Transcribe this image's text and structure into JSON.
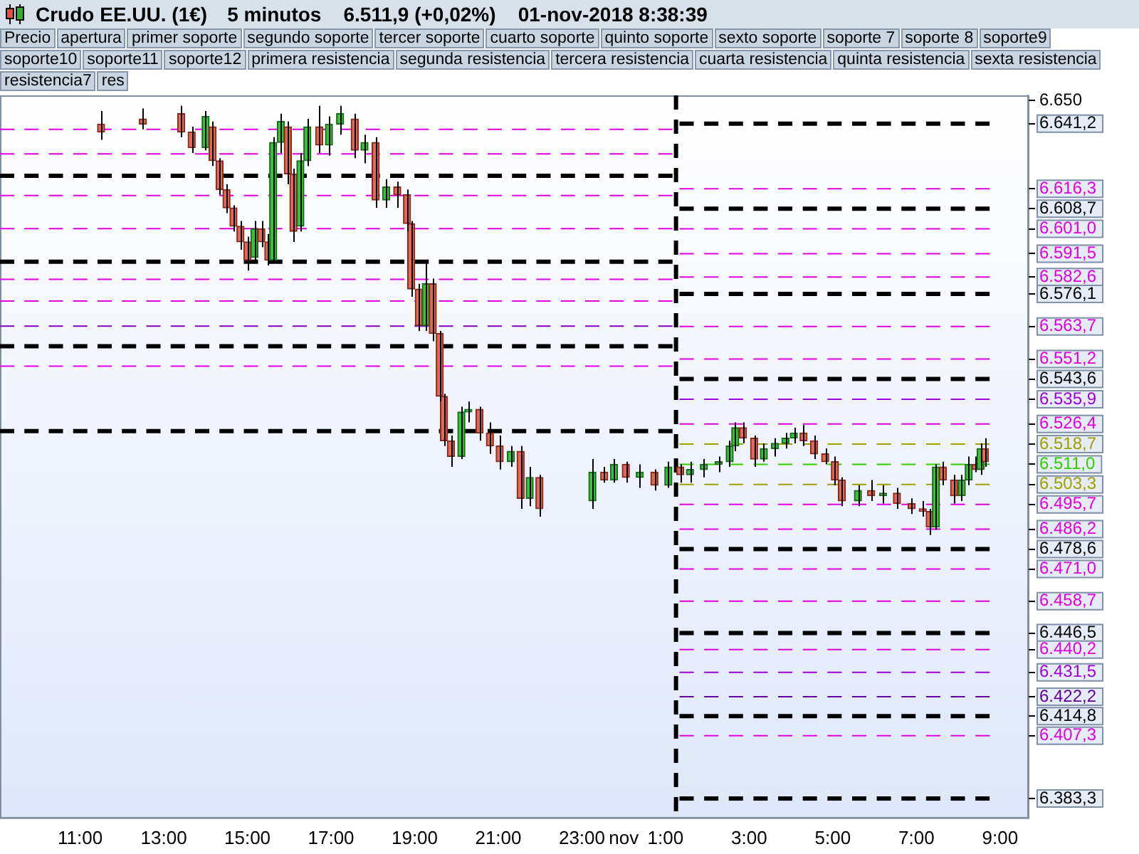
{
  "chart_data": {
    "type": "candlestick",
    "title": "Crudo EE.UU. (1€)",
    "subtitle": "5 minutos    6.511,9 (+0,02%)    01-nov-2018 8:38:39",
    "annotations": [
      "Precio",
      "apertura",
      "primer soporte",
      "segundo soporte",
      "tercer soporte",
      "cuarto soporte",
      "quinto soporte",
      "sexto soporte",
      "soporte 7",
      "soporte 8",
      "soporte9",
      "soporte10",
      "soporte11",
      "soporte12",
      "primera resistencia",
      "segunda resistencia",
      "tercera resistencia",
      "cuarta resistencia",
      "quinta resistencia",
      "sexta resistencia",
      "resistencia7",
      "res"
    ],
    "x": [
      "2018-10-31T11:30",
      "2018-10-31T12:30",
      "2018-10-31T13:25",
      "2018-10-31T13:40",
      "2018-10-31T14:00",
      "2018-10-31T14:10",
      "2018-10-31T14:20",
      "2018-10-31T14:30",
      "2018-10-31T14:40",
      "2018-10-31T14:50",
      "2018-10-31T15:00",
      "2018-10-31T15:10",
      "2018-10-31T15:20",
      "2018-10-31T15:30",
      "2018-10-31T15:37",
      "2018-10-31T15:48",
      "2018-10-31T15:58",
      "2018-10-31T16:06",
      "2018-10-31T16:16",
      "2018-10-31T16:26",
      "2018-10-31T16:43",
      "2018-10-31T16:57",
      "2018-10-31T17:13",
      "2018-10-31T17:34",
      "2018-10-31T17:48",
      "2018-10-31T18:04",
      "2018-10-31T18:19",
      "2018-10-31T18:35",
      "2018-10-31T18:49",
      "2018-10-31T18:55",
      "2018-10-31T19:06",
      "2018-10-31T19:16",
      "2018-10-31T19:26",
      "2018-10-31T19:36",
      "2018-10-31T19:42",
      "2018-10-31T19:52",
      "2018-10-31T20:07",
      "2018-10-31T20:17",
      "2018-10-31T20:33",
      "2018-10-31T20:48",
      "2018-10-31T21:02",
      "2018-10-31T21:18",
      "2018-10-31T21:32",
      "2018-10-31T21:45",
      "2018-10-31T21:59",
      "2018-10-31T23:15",
      "2018-10-31T23:32",
      "2018-10-31T23:46",
      "2018-11-01T00:03",
      "2018-11-01T00:23",
      "2018-11-01T00:44",
      "2018-11-01T01:04",
      "2018-11-01T01:21",
      "2018-11-01T01:35",
      "2018-11-01T01:55",
      "2018-11-01T02:16",
      "2018-11-01T02:32",
      "2018-11-01T02:40",
      "2018-11-01T02:51",
      "2018-11-01T03:07",
      "2018-11-01T03:21",
      "2018-11-01T03:37",
      "2018-11-01T03:52",
      "2018-11-01T04:04",
      "2018-11-01T04:18",
      "2018-11-01T04:33",
      "2018-11-01T04:49",
      "2018-11-01T05:03",
      "2018-11-01T05:13",
      "2018-11-01T05:36",
      "2018-11-01T05:55",
      "2018-11-01T06:12",
      "2018-11-01T06:32",
      "2018-11-01T06:53",
      "2018-11-01T07:09",
      "2018-11-01T07:19",
      "2018-11-01T07:28",
      "2018-11-01T07:38",
      "2018-11-01T07:54",
      "2018-11-01T08:05",
      "2018-11-01T08:15",
      "2018-11-01T08:25",
      "2018-11-01T08:32",
      "2018-11-01T08:38"
    ],
    "ohlc": [
      [
        6641,
        6646,
        6635,
        6638
      ],
      [
        6643,
        6647,
        6639,
        6641
      ],
      [
        6645,
        6648,
        6636,
        6638
      ],
      [
        6638,
        6640,
        6630,
        6632
      ],
      [
        6632,
        6646,
        6631,
        6644
      ],
      [
        6640,
        6642,
        6625,
        6627
      ],
      [
        6627,
        6628,
        6614,
        6616
      ],
      [
        6616,
        6618,
        6607,
        6609
      ],
      [
        6609,
        6610,
        6600,
        6602
      ],
      [
        6602,
        6604,
        6593,
        6596
      ],
      [
        6596,
        6598,
        6585,
        6589
      ],
      [
        6590,
        6604,
        6588,
        6601
      ],
      [
        6601,
        6604,
        6594,
        6596
      ],
      [
        6596,
        6599,
        6587,
        6589
      ],
      [
        6589,
        6636,
        6588,
        6634
      ],
      [
        6634,
        6645,
        6630,
        6642
      ],
      [
        6640,
        6642,
        6618,
        6622
      ],
      [
        6622,
        6624,
        6596,
        6600
      ],
      [
        6602,
        6630,
        6600,
        6627
      ],
      [
        6627,
        6643,
        6625,
        6640
      ],
      [
        6640,
        6648,
        6630,
        6633
      ],
      [
        6633,
        6644,
        6629,
        6641
      ],
      [
        6641,
        6648,
        6637,
        6645
      ],
      [
        6643,
        6645,
        6628,
        6631
      ],
      [
        6631,
        6637,
        6626,
        6634
      ],
      [
        6634,
        6636,
        6609,
        6612
      ],
      [
        6612,
        6620,
        6609,
        6617
      ],
      [
        6617,
        6619,
        6609,
        6614
      ],
      [
        6614,
        6616,
        6600,
        6603
      ],
      [
        6603,
        6604,
        6575,
        6578
      ],
      [
        6578,
        6580,
        6562,
        6564
      ],
      [
        6564,
        6589,
        6562,
        6580
      ],
      [
        6580,
        6582,
        6558,
        6561
      ],
      [
        6561,
        6562,
        6535,
        6537
      ],
      [
        6537,
        6538,
        6518,
        6520
      ],
      [
        6520,
        6522,
        6510,
        6514
      ],
      [
        6514,
        6533,
        6513,
        6531
      ],
      [
        6531,
        6535,
        6527,
        6532
      ],
      [
        6532,
        6533,
        6520,
        6523
      ],
      [
        6523,
        6527,
        6515,
        6518
      ],
      [
        6518,
        6522,
        6509,
        6512
      ],
      [
        6512,
        6518,
        6510,
        6516
      ],
      [
        6516,
        6518,
        6494,
        6498
      ],
      [
        6498,
        6510,
        6495,
        6506
      ],
      [
        6506,
        6507,
        6491,
        6494
      ],
      [
        6497,
        6513,
        6494,
        6508
      ],
      [
        6508,
        6510,
        6504,
        6505
      ],
      [
        6505,
        6513,
        6504,
        6511
      ],
      [
        6511,
        6512,
        6504,
        6506
      ],
      [
        6506,
        6511,
        6502,
        6508
      ],
      [
        6508,
        6509,
        6501,
        6503
      ],
      [
        6503,
        6512,
        6502,
        6510
      ],
      [
        6510,
        6511,
        6504,
        6507
      ],
      [
        6507,
        6512,
        6504,
        6509
      ],
      [
        6509,
        6513,
        6506,
        6511
      ],
      [
        6511,
        6514,
        6508,
        6512
      ],
      [
        6512,
        6520,
        6510,
        6518
      ],
      [
        6518,
        6527,
        6516,
        6525
      ],
      [
        6525,
        6527,
        6519,
        6521
      ],
      [
        6521,
        6522,
        6510,
        6513
      ],
      [
        6513,
        6519,
        6512,
        6517
      ],
      [
        6517,
        6521,
        6514,
        6519
      ],
      [
        6519,
        6523,
        6517,
        6521
      ],
      [
        6521,
        6525,
        6519,
        6523
      ],
      [
        6523,
        6526,
        6518,
        6520
      ],
      [
        6520,
        6522,
        6513,
        6515
      ],
      [
        6515,
        6517,
        6511,
        6512
      ],
      [
        6512,
        6514,
        6503,
        6505
      ],
      [
        6505,
        6506,
        6495,
        6497
      ],
      [
        6497,
        6503,
        6495,
        6501
      ],
      [
        6501,
        6505,
        6497,
        6499
      ],
      [
        6499,
        6503,
        6496,
        6500
      ],
      [
        6500,
        6502,
        6494,
        6496
      ],
      [
        6496,
        6498,
        6492,
        6494
      ],
      [
        6494,
        6497,
        6491,
        6493
      ],
      [
        6493,
        6494,
        6484,
        6487
      ],
      [
        6487,
        6511,
        6486,
        6510
      ],
      [
        6510,
        6512,
        6503,
        6505
      ],
      [
        6505,
        6507,
        6496,
        6499
      ],
      [
        6499,
        6507,
        6497,
        6505
      ],
      [
        6505,
        6514,
        6503,
        6511
      ],
      [
        6511,
        6514,
        6508,
        6509
      ],
      [
        6509,
        6519,
        6507,
        6517
      ],
      [
        6517,
        6521,
        6510,
        6512
      ]
    ],
    "series": [
      {
        "type": "line",
        "x": [
          "2018-10-31T09:05",
          "2018-11-01T01:10"
        ],
        "values": [
          6639.0,
          6639.0
        ],
        "color": "#e000e0",
        "line_style": "dashed"
      },
      {
        "type": "line",
        "x": [
          "2018-10-31T09:05",
          "2018-11-01T01:10"
        ],
        "values": [
          6629.6,
          6629.6
        ],
        "color": "#e000e0",
        "line_style": "dashed"
      },
      {
        "type": "line",
        "x": [
          "2018-10-31T09:05",
          "2018-11-01T01:10"
        ],
        "values": [
          6621.3,
          6621.3
        ],
        "color": "#000000",
        "line_style": "dashed"
      },
      {
        "type": "line",
        "x": [
          "2018-10-31T09:05",
          "2018-11-01T01:10"
        ],
        "values": [
          6613.7,
          6613.7
        ],
        "color": "#e000e0",
        "line_style": "dashed"
      },
      {
        "type": "line",
        "x": [
          "2018-10-31T09:05",
          "2018-11-01T01:10"
        ],
        "values": [
          6601.1,
          6601.1
        ],
        "color": "#e000e0",
        "line_style": "dashed"
      },
      {
        "type": "line",
        "x": [
          "2018-10-31T09:05",
          "2018-11-01T01:10"
        ],
        "values": [
          6588.4,
          6588.4
        ],
        "color": "#000000",
        "line_style": "dashed"
      },
      {
        "type": "line",
        "x": [
          "2018-10-31T09:05",
          "2018-11-01T01:10"
        ],
        "values": [
          6581.7,
          6581.7
        ],
        "color": "#e000e0",
        "line_style": "dashed"
      },
      {
        "type": "line",
        "x": [
          "2018-10-31T09:05",
          "2018-11-01T01:10"
        ],
        "values": [
          6573.4,
          6573.4
        ],
        "color": "#e000e0",
        "line_style": "dashed"
      },
      {
        "type": "line",
        "x": [
          "2018-10-31T09:05",
          "2018-11-01T01:10"
        ],
        "values": [
          6563.8,
          6563.8
        ],
        "color": "#8000c0",
        "line_style": "dashed"
      },
      {
        "type": "line",
        "x": [
          "2018-10-31T09:05",
          "2018-11-01T01:10"
        ],
        "values": [
          6556.1,
          6556.1
        ],
        "color": "#000000",
        "line_style": "dashed"
      },
      {
        "type": "line",
        "x": [
          "2018-10-31T09:05",
          "2018-11-01T01:10"
        ],
        "values": [
          6548.5,
          6548.5
        ],
        "color": "#e000e0",
        "line_style": "dashed"
      },
      {
        "type": "line",
        "x": [
          "2018-10-31T09:05",
          "2018-11-01T01:10"
        ],
        "values": [
          6523.7,
          6523.7
        ],
        "color": "#000000",
        "line_style": "dashed"
      },
      {
        "type": "line",
        "x": [
          "2018-11-01T01:20",
          "2018-11-01T08:45"
        ],
        "values": [
          6641.2,
          6641.2
        ],
        "color": "#000000",
        "line_style": "dashed"
      },
      {
        "type": "line",
        "x": [
          "2018-11-01T01:20",
          "2018-11-01T08:45"
        ],
        "values": [
          6616.3,
          6616.3
        ],
        "color": "#e000e0",
        "line_style": "dashed"
      },
      {
        "type": "line",
        "x": [
          "2018-11-01T01:20",
          "2018-11-01T08:45"
        ],
        "values": [
          6608.7,
          6608.7
        ],
        "color": "#000000",
        "line_style": "dashed"
      },
      {
        "type": "line",
        "x": [
          "2018-11-01T01:20",
          "2018-11-01T08:45"
        ],
        "values": [
          6601.0,
          6601.0
        ],
        "color": "#e000e0",
        "line_style": "dashed"
      },
      {
        "type": "line",
        "x": [
          "2018-11-01T01:20",
          "2018-11-01T08:45"
        ],
        "values": [
          6591.5,
          6591.5
        ],
        "color": "#e000e0",
        "line_style": "dashed"
      },
      {
        "type": "line",
        "x": [
          "2018-11-01T01:20",
          "2018-11-01T08:45"
        ],
        "values": [
          6582.6,
          6582.6
        ],
        "color": "#e000e0",
        "line_style": "dashed"
      },
      {
        "type": "line",
        "x": [
          "2018-11-01T01:20",
          "2018-11-01T08:45"
        ],
        "values": [
          6576.1,
          6576.1
        ],
        "color": "#000000",
        "line_style": "dashed"
      },
      {
        "type": "line",
        "x": [
          "2018-11-01T01:20",
          "2018-11-01T08:45"
        ],
        "values": [
          6563.7,
          6563.7
        ],
        "color": "#e000e0",
        "line_style": "dashed"
      },
      {
        "type": "line",
        "x": [
          "2018-11-01T01:20",
          "2018-11-01T08:45"
        ],
        "values": [
          6551.2,
          6551.2
        ],
        "color": "#e000e0",
        "line_style": "dashed"
      },
      {
        "type": "line",
        "x": [
          "2018-11-01T01:20",
          "2018-11-01T08:45"
        ],
        "values": [
          6543.6,
          6543.6
        ],
        "color": "#000000",
        "line_style": "dashed"
      },
      {
        "type": "line",
        "x": [
          "2018-11-01T01:20",
          "2018-11-01T08:45"
        ],
        "values": [
          6535.9,
          6535.9
        ],
        "color": "#a000e0",
        "line_style": "dashed"
      },
      {
        "type": "line",
        "x": [
          "2018-11-01T01:20",
          "2018-11-01T08:45"
        ],
        "values": [
          6526.4,
          6526.4
        ],
        "color": "#e000e0",
        "line_style": "dashed"
      },
      {
        "type": "line",
        "x": [
          "2018-11-01T01:20",
          "2018-11-01T08:45"
        ],
        "values": [
          6518.7,
          6518.7
        ],
        "color": "#a0a000",
        "line_style": "dashed"
      },
      {
        "type": "line",
        "x": [
          "2018-11-01T01:20",
          "2018-11-01T08:45"
        ],
        "values": [
          6511.0,
          6511.0
        ],
        "color": "#30d000",
        "line_style": "dashed"
      },
      {
        "type": "line",
        "x": [
          "2018-11-01T01:20",
          "2018-11-01T08:45"
        ],
        "values": [
          6503.3,
          6503.3
        ],
        "color": "#a0a000",
        "line_style": "dashed"
      },
      {
        "type": "line",
        "x": [
          "2018-11-01T01:20",
          "2018-11-01T08:45"
        ],
        "values": [
          6495.7,
          6495.7
        ],
        "color": "#e000e0",
        "line_style": "dashed"
      },
      {
        "type": "line",
        "x": [
          "2018-11-01T01:20",
          "2018-11-01T08:45"
        ],
        "values": [
          6486.2,
          6486.2
        ],
        "color": "#e000e0",
        "line_style": "dashed"
      },
      {
        "type": "line",
        "x": [
          "2018-11-01T01:20",
          "2018-11-01T08:45"
        ],
        "values": [
          6478.6,
          6478.6
        ],
        "color": "#000000",
        "line_style": "dashed"
      },
      {
        "type": "line",
        "x": [
          "2018-11-01T01:20",
          "2018-11-01T08:45"
        ],
        "values": [
          6471.0,
          6471.0
        ],
        "color": "#e000e0",
        "line_style": "dashed"
      },
      {
        "type": "line",
        "x": [
          "2018-11-01T01:20",
          "2018-11-01T08:45"
        ],
        "values": [
          6458.7,
          6458.7
        ],
        "color": "#e000e0",
        "line_style": "dashed"
      },
      {
        "type": "line",
        "x": [
          "2018-11-01T01:20",
          "2018-11-01T08:45"
        ],
        "values": [
          6446.5,
          6446.5
        ],
        "color": "#000000",
        "line_style": "dashed"
      },
      {
        "type": "line",
        "x": [
          "2018-11-01T01:20",
          "2018-11-01T08:45"
        ],
        "values": [
          6440.2,
          6440.2
        ],
        "color": "#e000e0",
        "line_style": "dashed"
      },
      {
        "type": "line",
        "x": [
          "2018-11-01T01:20",
          "2018-11-01T08:45"
        ],
        "values": [
          6431.5,
          6431.5
        ],
        "color": "#a000e0",
        "line_style": "dashed"
      },
      {
        "type": "line",
        "x": [
          "2018-11-01T01:20",
          "2018-11-01T08:45"
        ],
        "values": [
          6422.2,
          6422.2
        ],
        "color": "#6000a0",
        "line_style": "dashed"
      },
      {
        "type": "line",
        "x": [
          "2018-11-01T01:20",
          "2018-11-01T08:45"
        ],
        "values": [
          6414.8,
          6414.8
        ],
        "color": "#000000",
        "line_style": "dashed"
      },
      {
        "type": "line",
        "x": [
          "2018-11-01T01:20",
          "2018-11-01T08:45"
        ],
        "values": [
          6407.3,
          6407.3
        ],
        "color": "#e000e0",
        "line_style": "dashed"
      },
      {
        "type": "line",
        "x": [
          "2018-11-01T01:20",
          "2018-11-01T08:45"
        ],
        "values": [
          6383.3,
          6383.3
        ],
        "color": "#000000",
        "line_style": "dashed"
      }
    ],
    "ref_lines": [
      {
        "axis": "x",
        "value": "2018-11-01T01:15",
        "color": "#000000",
        "line_style": "dashed"
      }
    ],
    "xlim": [
      "2018-10-31T09:05",
      "2018-11-01T09:40"
    ],
    "xticks": [
      {
        "value": "2018-10-31T11:00",
        "label": "11:00"
      },
      {
        "value": "2018-10-31T13:00",
        "label": "13:00"
      },
      {
        "value": "2018-10-31T15:00",
        "label": "15:00"
      },
      {
        "value": "2018-10-31T17:00",
        "label": "17:00"
      },
      {
        "value": "2018-10-31T19:00",
        "label": "19:00"
      },
      {
        "value": "2018-10-31T21:00",
        "label": "21:00"
      },
      {
        "value": "2018-10-31T23:00",
        "label": "23:00"
      },
      {
        "value": "2018-11-01T00:00",
        "label": "nov"
      },
      {
        "value": "2018-11-01T01:00",
        "label": "1:00"
      },
      {
        "value": "2018-11-01T03:00",
        "label": "3:00"
      },
      {
        "value": "2018-11-01T05:00",
        "label": "5:00"
      },
      {
        "value": "2018-11-01T07:00",
        "label": "7:00"
      },
      {
        "value": "2018-11-01T09:00",
        "label": "9:00"
      }
    ],
    "ylim": [
      6376,
      6652
    ],
    "yticks": [
      {
        "value": 6650,
        "label": "6.650"
      },
      {
        "value": 6641.2,
        "label": "6.641,2"
      },
      {
        "value": 6616.3,
        "label": "6.616,3"
      },
      {
        "value": 6608.7,
        "label": "6.608,7"
      },
      {
        "value": 6601.0,
        "label": "6.601,0"
      },
      {
        "value": 6591.5,
        "label": "6.591,5"
      },
      {
        "value": 6582.6,
        "label": "6.582,6"
      },
      {
        "value": 6576.1,
        "label": "6.576,1"
      },
      {
        "value": 6563.7,
        "label": "6.563,7"
      },
      {
        "value": 6551.2,
        "label": "6.551,2"
      },
      {
        "value": 6543.6,
        "label": "6.543,6"
      },
      {
        "value": 6535.9,
        "label": "6.535,9"
      },
      {
        "value": 6526.4,
        "label": "6.526,4"
      },
      {
        "value": 6518.7,
        "label": "6.518,7"
      },
      {
        "value": 6511.0,
        "label": "6.511,0"
      },
      {
        "value": 6503.3,
        "label": "6.503,3"
      },
      {
        "value": 6495.7,
        "label": "6.495,7"
      },
      {
        "value": 6486.2,
        "label": "6.486,2"
      },
      {
        "value": 6478.6,
        "label": "6.478,6"
      },
      {
        "value": 6471.0,
        "label": "6.471,0"
      },
      {
        "value": 6458.7,
        "label": "6.458,7"
      },
      {
        "value": 6446.5,
        "label": "6.446,5"
      },
      {
        "value": 6440.2,
        "label": "6.440,2"
      },
      {
        "value": 6431.5,
        "label": "6.431,5"
      },
      {
        "value": 6422.2,
        "label": "6.422,2"
      },
      {
        "value": 6414.8,
        "label": "6.414,8"
      },
      {
        "value": 6407.3,
        "label": "6.407,3"
      },
      {
        "value": 6383.3,
        "label": "6.383,3"
      }
    ],
    "grid": false,
    "legend": false,
    "marker": "none"
  }
}
